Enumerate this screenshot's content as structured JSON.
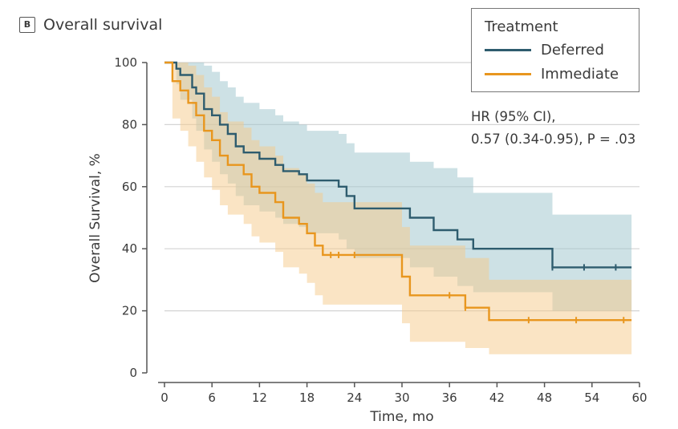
{
  "panel": {
    "letter": "B",
    "title": "Overall survival"
  },
  "legend": {
    "title": "Treatment",
    "items": [
      {
        "label": "Deferred",
        "color": "#2e5c6e"
      },
      {
        "label": "Immediate",
        "color": "#e8961e"
      }
    ]
  },
  "annotation": {
    "line1": "HR (95% CI),",
    "line2": "0.57 (0.34-0.95), P = .03"
  },
  "chart_data": {
    "type": "line",
    "step": true,
    "xlabel": "Time, mo",
    "ylabel": "Overall Survival, %",
    "xlim": [
      0,
      60
    ],
    "ylim": [
      0,
      100
    ],
    "xticks": [
      0,
      6,
      12,
      18,
      24,
      30,
      36,
      42,
      48,
      54,
      60
    ],
    "yticks": [
      0,
      20,
      40,
      60,
      80,
      100
    ],
    "grid": "horizontal",
    "legend_placement": "top-right",
    "series": [
      {
        "name": "Deferred",
        "color": "#2e5c6e",
        "band_color": "#9cc3cc",
        "x": [
          0,
          1.5,
          2,
          3.5,
          4,
          5,
          6,
          7,
          8,
          9,
          10,
          12,
          14,
          15,
          17,
          18,
          22,
          23,
          24,
          31,
          34,
          37,
          39,
          49,
          59
        ],
        "y": [
          100,
          98,
          96,
          92,
          90,
          85,
          83,
          80,
          77,
          73,
          71,
          69,
          67,
          65,
          64,
          62,
          60,
          57,
          53,
          50,
          46,
          43,
          40,
          34,
          34
        ],
        "ci_upper": [
          100,
          100,
          100,
          100,
          100,
          99,
          97,
          94,
          92,
          89,
          87,
          85,
          83,
          81,
          80,
          78,
          77,
          74,
          71,
          68,
          66,
          63,
          58,
          51,
          51
        ],
        "ci_lower": [
          100,
          93,
          88,
          82,
          78,
          72,
          68,
          64,
          61,
          57,
          54,
          52,
          50,
          48,
          47,
          45,
          43,
          40,
          37,
          34,
          31,
          28,
          26,
          20,
          18
        ],
        "censor_x": [
          49,
          53,
          57
        ]
      },
      {
        "name": "Immediate",
        "color": "#e8961e",
        "band_color": "#f5c98a",
        "x": [
          0,
          1,
          2,
          3,
          4,
          5,
          6,
          7,
          8,
          10,
          11,
          12,
          14,
          15,
          17,
          18,
          19,
          20,
          24,
          30,
          31,
          36,
          38,
          41,
          59
        ],
        "y": [
          100,
          94,
          91,
          87,
          83,
          78,
          75,
          70,
          67,
          64,
          60,
          58,
          55,
          50,
          48,
          45,
          41,
          38,
          38,
          31,
          25,
          25,
          21,
          17,
          17
        ],
        "ci_upper": [
          100,
          100,
          100,
          99,
          96,
          92,
          89,
          84,
          81,
          79,
          75,
          73,
          70,
          66,
          64,
          61,
          58,
          55,
          55,
          47,
          41,
          41,
          37,
          30,
          30
        ],
        "ci_lower": [
          100,
          82,
          78,
          73,
          68,
          63,
          59,
          54,
          51,
          48,
          44,
          42,
          39,
          34,
          32,
          29,
          25,
          22,
          22,
          16,
          10,
          10,
          8,
          6,
          6
        ],
        "censor_x": [
          21,
          22,
          24,
          36,
          38,
          46,
          52,
          58
        ]
      }
    ]
  }
}
